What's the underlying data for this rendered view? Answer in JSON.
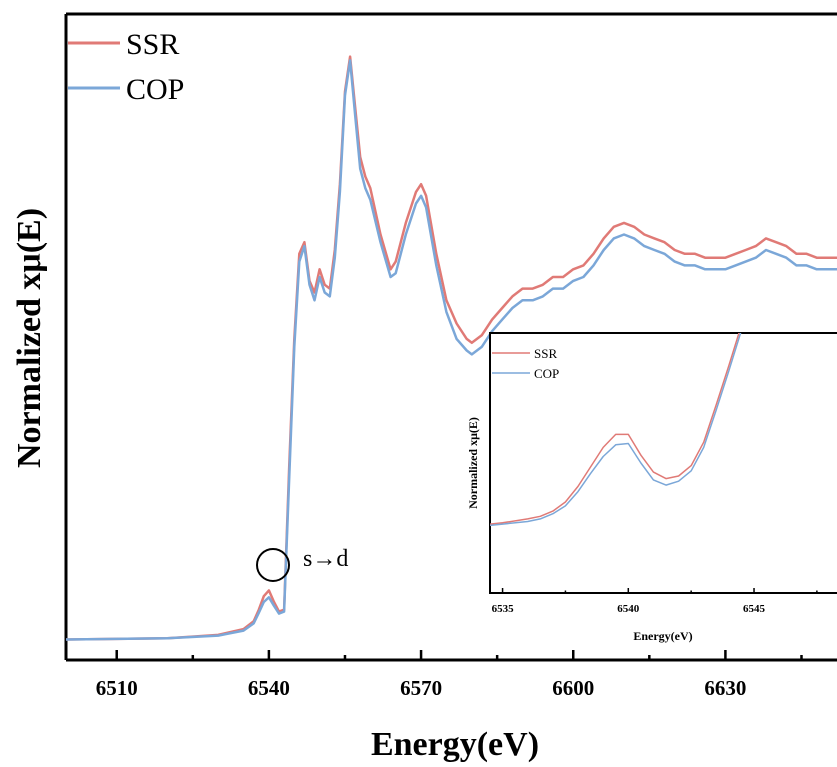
{
  "colors": {
    "ssr": "#e07a76",
    "cop": "#7ba7d8"
  },
  "chart_data": [
    {
      "type": "line",
      "title": "",
      "xlabel": "Energy(eV)",
      "ylabel": "Normalized xμ(E)",
      "xlim": [
        6500,
        6652
      ],
      "ylim": [
        -0.05,
        1.62
      ],
      "xticks": [
        6510,
        6540,
        6570,
        6600,
        6630
      ],
      "grid": false,
      "legend_position": "top-left",
      "annotation": {
        "text": "s→d",
        "x": 6540,
        "y": 0.1
      },
      "series": [
        {
          "name": "SSR",
          "x": [
            6500,
            6520,
            6530,
            6535,
            6537,
            6538,
            6539,
            6540,
            6541,
            6542,
            6543,
            6544,
            6545,
            6546,
            6547,
            6548,
            6549,
            6550,
            6551,
            6552,
            6553,
            6554,
            6555,
            6556,
            6557,
            6558,
            6559,
            6560,
            6562,
            6564,
            6565,
            6567,
            6569,
            6570,
            6571,
            6573,
            6575,
            6577,
            6579,
            6580,
            6582,
            6584,
            6586,
            6588,
            6590,
            6592,
            6594,
            6596,
            6598,
            6600,
            6602,
            6604,
            6606,
            6608,
            6610,
            6612,
            6614,
            6616,
            6618,
            6620,
            6622,
            6624,
            6626,
            6628,
            6630,
            6632,
            6634,
            6636,
            6638,
            6640,
            6642,
            6644,
            6646,
            6648,
            6650,
            6652
          ],
          "y": [
            0.003,
            0.006,
            0.015,
            0.03,
            0.05,
            0.08,
            0.115,
            0.13,
            0.1,
            0.075,
            0.08,
            0.45,
            0.78,
            1.0,
            1.03,
            0.93,
            0.9,
            0.96,
            0.92,
            0.91,
            1.01,
            1.18,
            1.42,
            1.51,
            1.38,
            1.25,
            1.2,
            1.17,
            1.05,
            0.96,
            0.98,
            1.08,
            1.16,
            1.18,
            1.15,
            1.0,
            0.88,
            0.82,
            0.78,
            0.77,
            0.79,
            0.83,
            0.86,
            0.89,
            0.91,
            0.91,
            0.92,
            0.94,
            0.94,
            0.96,
            0.97,
            1.0,
            1.04,
            1.07,
            1.08,
            1.07,
            1.05,
            1.04,
            1.03,
            1.01,
            1.0,
            1.0,
            0.99,
            0.99,
            0.99,
            1.0,
            1.01,
            1.02,
            1.04,
            1.03,
            1.02,
            1.0,
            1.0,
            0.99,
            0.99,
            0.99
          ]
        },
        {
          "name": "COP",
          "x": [
            6500,
            6520,
            6530,
            6535,
            6537,
            6538,
            6539,
            6540,
            6541,
            6542,
            6543,
            6544,
            6545,
            6546,
            6547,
            6548,
            6549,
            6550,
            6551,
            6552,
            6553,
            6554,
            6555,
            6556,
            6557,
            6558,
            6559,
            6560,
            6562,
            6564,
            6565,
            6567,
            6569,
            6570,
            6571,
            6573,
            6575,
            6577,
            6579,
            6580,
            6582,
            6584,
            6586,
            6588,
            6590,
            6592,
            6594,
            6596,
            6598,
            6600,
            6602,
            6604,
            6606,
            6608,
            6610,
            6612,
            6614,
            6616,
            6618,
            6620,
            6622,
            6624,
            6626,
            6628,
            6630,
            6632,
            6634,
            6636,
            6638,
            6640,
            6642,
            6644,
            6646,
            6648,
            6650,
            6652
          ],
          "y": [
            0.003,
            0.006,
            0.013,
            0.026,
            0.045,
            0.072,
            0.1,
            0.112,
            0.09,
            0.07,
            0.075,
            0.42,
            0.76,
            0.98,
            1.02,
            0.92,
            0.88,
            0.94,
            0.9,
            0.89,
            0.99,
            1.16,
            1.41,
            1.5,
            1.36,
            1.22,
            1.17,
            1.14,
            1.03,
            0.94,
            0.95,
            1.05,
            1.13,
            1.15,
            1.12,
            0.97,
            0.85,
            0.78,
            0.75,
            0.74,
            0.76,
            0.8,
            0.83,
            0.86,
            0.88,
            0.88,
            0.89,
            0.91,
            0.91,
            0.93,
            0.94,
            0.97,
            1.01,
            1.04,
            1.05,
            1.04,
            1.02,
            1.01,
            1.0,
            0.98,
            0.97,
            0.97,
            0.96,
            0.96,
            0.96,
            0.97,
            0.98,
            0.99,
            1.01,
            1.0,
            0.99,
            0.97,
            0.97,
            0.96,
            0.96,
            0.96
          ]
        }
      ]
    },
    {
      "type": "line",
      "title": "",
      "xlabel": "Energy(eV)",
      "ylabel": "Normalized xμ(E)",
      "xlim": [
        6534.5,
        6548.3
      ],
      "ylim": [
        0.0,
        0.2
      ],
      "xticks": [
        6535,
        6540,
        6545
      ],
      "grid": false,
      "legend_position": "top-left",
      "series": [
        {
          "name": "SSR",
          "x": [
            6534.5,
            6535,
            6536,
            6536.5,
            6537,
            6537.5,
            6538,
            6538.5,
            6539,
            6539.5,
            6540,
            6540.5,
            6541,
            6541.5,
            6542,
            6542.5,
            6543,
            6543.5,
            6544,
            6544.5
          ],
          "y": [
            0.053,
            0.054,
            0.057,
            0.059,
            0.063,
            0.07,
            0.082,
            0.097,
            0.112,
            0.122,
            0.122,
            0.106,
            0.093,
            0.088,
            0.09,
            0.098,
            0.116,
            0.145,
            0.175,
            0.206
          ]
        },
        {
          "name": "COP",
          "x": [
            6534.5,
            6535,
            6536,
            6536.5,
            6537,
            6537.5,
            6538,
            6538.5,
            6539,
            6539.5,
            6540,
            6540.5,
            6541,
            6541.5,
            6542,
            6542.5,
            6543,
            6543.5,
            6544,
            6544.5
          ],
          "y": [
            0.052,
            0.053,
            0.055,
            0.057,
            0.061,
            0.067,
            0.078,
            0.092,
            0.105,
            0.114,
            0.115,
            0.1,
            0.087,
            0.083,
            0.086,
            0.094,
            0.112,
            0.141,
            0.171,
            0.202
          ]
        }
      ]
    }
  ]
}
